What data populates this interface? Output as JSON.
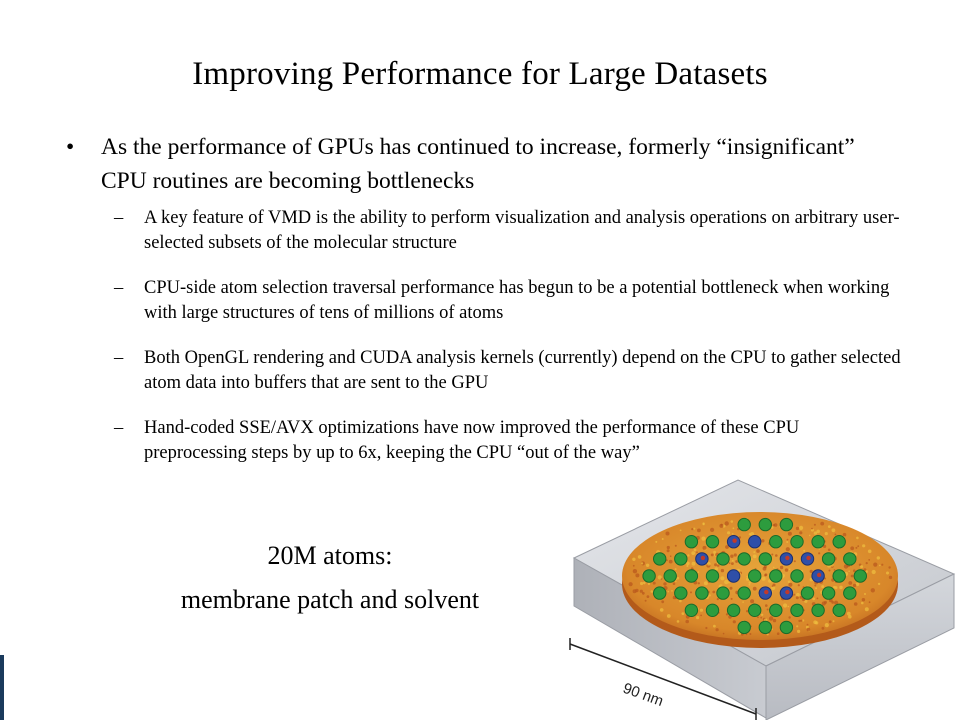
{
  "slide": {
    "title": "Improving Performance for Large Datasets",
    "bullet": {
      "marker": "•",
      "text": "As the performance of GPUs has continued to increase, formerly “insignificant” CPU routines are becoming bottlenecks"
    },
    "sub_bullets": [
      {
        "marker": "–",
        "text": "A key feature of VMD is the ability to perform visualization and analysis operations on arbitrary user-selected subsets of the molecular structure"
      },
      {
        "marker": "–",
        "text": "CPU-side atom selection traversal performance has begun to be a potential bottleneck when working with large structures of tens of millions of atoms"
      },
      {
        "marker": "–",
        "text": "Both OpenGL rendering and CUDA analysis kernels (currently) depend on the CPU to gather selected atom data into buffers that are sent to the GPU"
      },
      {
        "marker": "–",
        "text": "Hand-coded SSE/AVX optimizations have now improved the performance of these CPU preprocessing steps by up to 6x, keeping the CPU “out of the way”"
      }
    ],
    "caption": {
      "line1": "20M atoms:",
      "line2": "membrane patch and solvent"
    },
    "figure": {
      "scale_label": "90 nm",
      "colors": {
        "box": "#c9ccd2",
        "disc": "#d9902a",
        "disc_speckle": "#b8561c",
        "protein_green": "#2d9c3e",
        "protein_blue": "#2f4fa8",
        "protein_red": "#c0392b"
      }
    },
    "accent_bar_color": "#1a3a5c"
  }
}
